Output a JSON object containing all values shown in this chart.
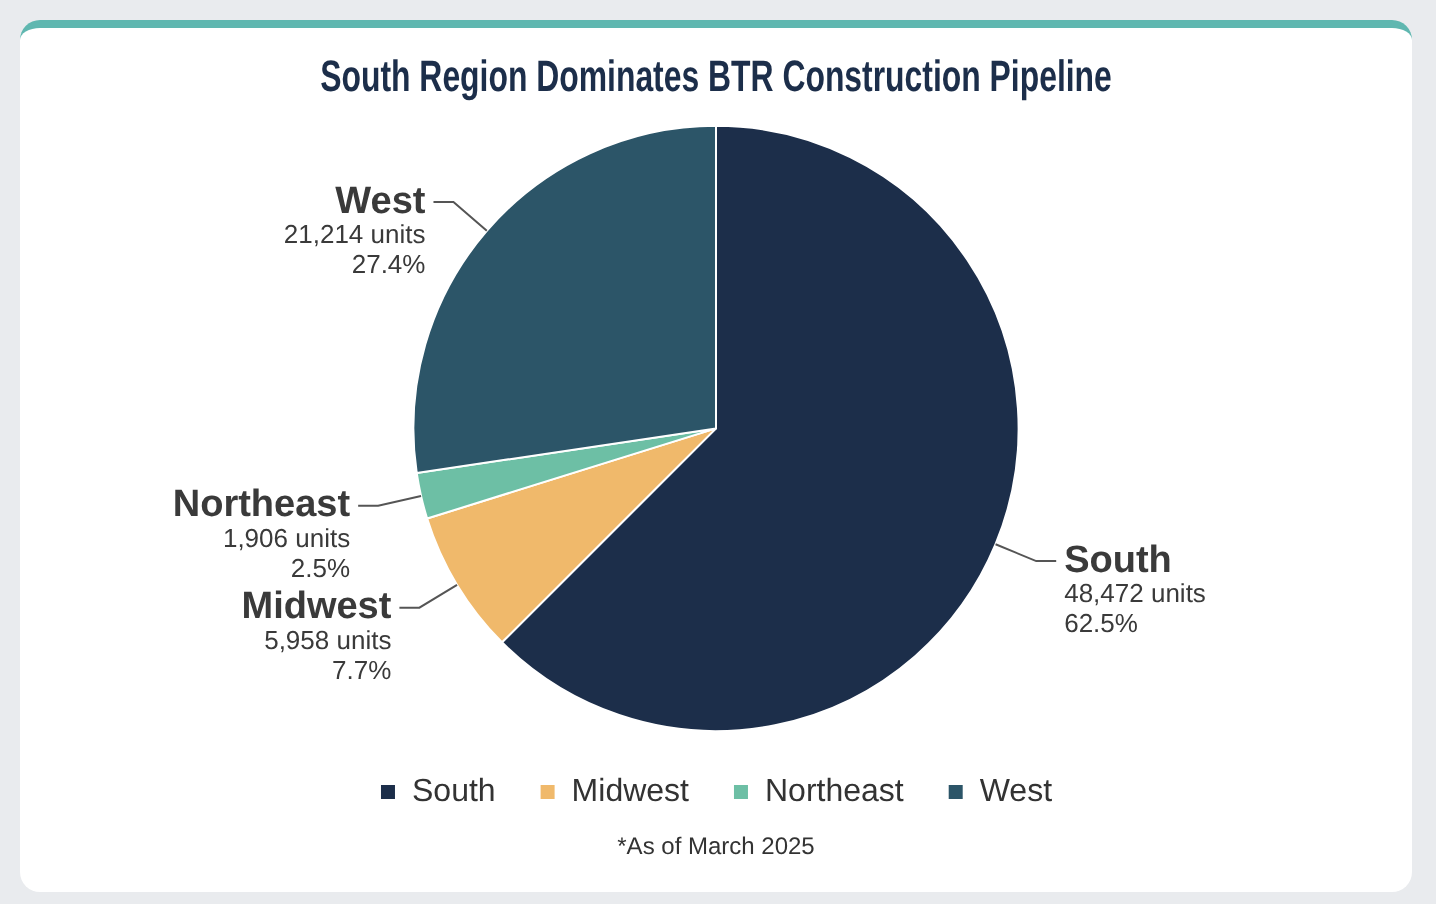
{
  "chart_data": {
    "type": "pie",
    "title": "South Region Dominates BTR Construction Pipeline",
    "categories": [
      "South",
      "Midwest",
      "Northeast",
      "West"
    ],
    "values": [
      48472,
      5958,
      1906,
      21214
    ],
    "colors": [
      "#1c2e4a",
      "#f0b96b",
      "#6dbfa5",
      "#2c5568"
    ],
    "value_labels": [
      "48,472 units\n62.5%",
      "5,958 units\n7.7%",
      "1,906 units\n2.5%",
      "21,214 units\n27.4%"
    ],
    "legend": "bottom",
    "annotations": [
      "*As of March 2025"
    ]
  }
}
